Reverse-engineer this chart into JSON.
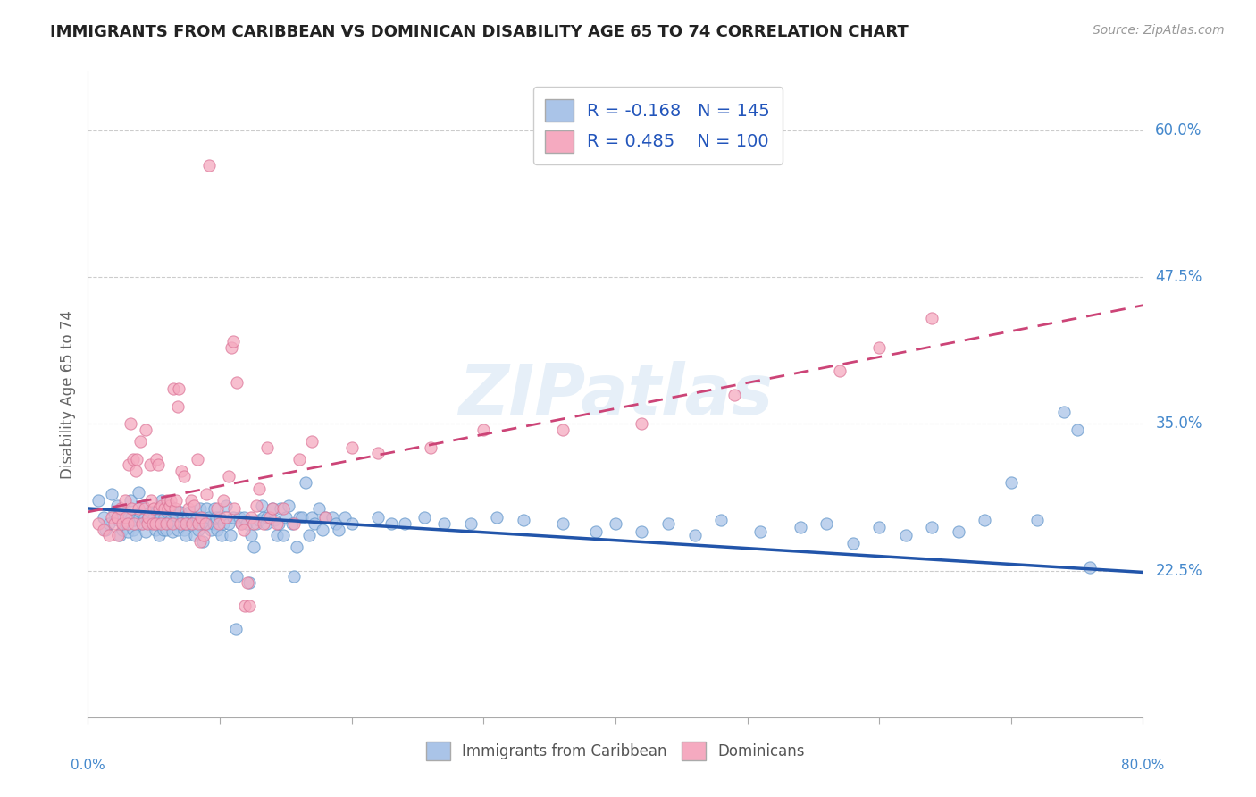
{
  "title": "IMMIGRANTS FROM CARIBBEAN VS DOMINICAN DISABILITY AGE 65 TO 74 CORRELATION CHART",
  "source": "Source: ZipAtlas.com",
  "ylabel": "Disability Age 65 to 74",
  "ytick_labels": [
    "22.5%",
    "35.0%",
    "47.5%",
    "60.0%"
  ],
  "ytick_values": [
    0.225,
    0.35,
    0.475,
    0.6
  ],
  "xmin": 0.0,
  "xmax": 0.8,
  "ymin": 0.1,
  "ymax": 0.65,
  "series": [
    {
      "name": "Immigrants from Caribbean",
      "color": "#aac4e8",
      "edge_color": "#6699cc",
      "line_color": "#2255aa",
      "R": -0.168,
      "N": 145,
      "slope": -0.068,
      "intercept": 0.278,
      "line_style": "solid"
    },
    {
      "name": "Dominicans",
      "color": "#f5aac0",
      "edge_color": "#dd7799",
      "line_color": "#cc4477",
      "R": 0.485,
      "N": 100,
      "slope": 0.22,
      "intercept": 0.275,
      "line_style": "dashed"
    }
  ],
  "watermark": "ZIPatlas",
  "caribbean_points": [
    [
      0.008,
      0.285
    ],
    [
      0.012,
      0.27
    ],
    [
      0.013,
      0.26
    ],
    [
      0.016,
      0.265
    ],
    [
      0.018,
      0.29
    ],
    [
      0.02,
      0.275
    ],
    [
      0.022,
      0.28
    ],
    [
      0.023,
      0.268
    ],
    [
      0.024,
      0.255
    ],
    [
      0.025,
      0.27
    ],
    [
      0.026,
      0.26
    ],
    [
      0.028,
      0.275
    ],
    [
      0.029,
      0.265
    ],
    [
      0.03,
      0.258
    ],
    [
      0.031,
      0.27
    ],
    [
      0.032,
      0.285
    ],
    [
      0.033,
      0.27
    ],
    [
      0.034,
      0.26
    ],
    [
      0.035,
      0.268
    ],
    [
      0.036,
      0.255
    ],
    [
      0.038,
      0.292
    ],
    [
      0.039,
      0.27
    ],
    [
      0.04,
      0.275
    ],
    [
      0.041,
      0.265
    ],
    [
      0.042,
      0.28
    ],
    [
      0.043,
      0.27
    ],
    [
      0.044,
      0.258
    ],
    [
      0.045,
      0.268
    ],
    [
      0.046,
      0.27
    ],
    [
      0.047,
      0.275
    ],
    [
      0.048,
      0.265
    ],
    [
      0.05,
      0.27
    ],
    [
      0.051,
      0.26
    ],
    [
      0.052,
      0.275
    ],
    [
      0.053,
      0.265
    ],
    [
      0.054,
      0.255
    ],
    [
      0.055,
      0.27
    ],
    [
      0.056,
      0.285
    ],
    [
      0.057,
      0.26
    ],
    [
      0.058,
      0.27
    ],
    [
      0.059,
      0.26
    ],
    [
      0.06,
      0.275
    ],
    [
      0.061,
      0.265
    ],
    [
      0.062,
      0.28
    ],
    [
      0.063,
      0.268
    ],
    [
      0.064,
      0.258
    ],
    [
      0.065,
      0.275
    ],
    [
      0.066,
      0.265
    ],
    [
      0.067,
      0.272
    ],
    [
      0.068,
      0.26
    ],
    [
      0.07,
      0.275
    ],
    [
      0.071,
      0.265
    ],
    [
      0.072,
      0.27
    ],
    [
      0.073,
      0.26
    ],
    [
      0.074,
      0.255
    ],
    [
      0.075,
      0.268
    ],
    [
      0.076,
      0.27
    ],
    [
      0.077,
      0.275
    ],
    [
      0.078,
      0.265
    ],
    [
      0.08,
      0.27
    ],
    [
      0.081,
      0.255
    ],
    [
      0.082,
      0.268
    ],
    [
      0.083,
      0.27
    ],
    [
      0.084,
      0.26
    ],
    [
      0.085,
      0.278
    ],
    [
      0.086,
      0.265
    ],
    [
      0.087,
      0.25
    ],
    [
      0.088,
      0.27
    ],
    [
      0.089,
      0.265
    ],
    [
      0.09,
      0.278
    ],
    [
      0.091,
      0.265
    ],
    [
      0.092,
      0.27
    ],
    [
      0.093,
      0.26
    ],
    [
      0.095,
      0.265
    ],
    [
      0.096,
      0.278
    ],
    [
      0.097,
      0.27
    ],
    [
      0.098,
      0.26
    ],
    [
      0.1,
      0.27
    ],
    [
      0.101,
      0.255
    ],
    [
      0.103,
      0.265
    ],
    [
      0.105,
      0.28
    ],
    [
      0.107,
      0.265
    ],
    [
      0.108,
      0.255
    ],
    [
      0.11,
      0.27
    ],
    [
      0.112,
      0.175
    ],
    [
      0.113,
      0.22
    ],
    [
      0.115,
      0.27
    ],
    [
      0.116,
      0.265
    ],
    [
      0.118,
      0.27
    ],
    [
      0.12,
      0.265
    ],
    [
      0.122,
      0.215
    ],
    [
      0.124,
      0.255
    ],
    [
      0.126,
      0.245
    ],
    [
      0.128,
      0.265
    ],
    [
      0.13,
      0.268
    ],
    [
      0.132,
      0.28
    ],
    [
      0.133,
      0.27
    ],
    [
      0.135,
      0.265
    ],
    [
      0.136,
      0.27
    ],
    [
      0.14,
      0.278
    ],
    [
      0.141,
      0.268
    ],
    [
      0.143,
      0.255
    ],
    [
      0.145,
      0.265
    ],
    [
      0.146,
      0.278
    ],
    [
      0.148,
      0.255
    ],
    [
      0.15,
      0.27
    ],
    [
      0.152,
      0.28
    ],
    [
      0.155,
      0.265
    ],
    [
      0.156,
      0.22
    ],
    [
      0.158,
      0.245
    ],
    [
      0.16,
      0.27
    ],
    [
      0.162,
      0.27
    ],
    [
      0.165,
      0.3
    ],
    [
      0.168,
      0.255
    ],
    [
      0.17,
      0.27
    ],
    [
      0.172,
      0.265
    ],
    [
      0.175,
      0.278
    ],
    [
      0.178,
      0.26
    ],
    [
      0.18,
      0.27
    ],
    [
      0.185,
      0.27
    ],
    [
      0.188,
      0.265
    ],
    [
      0.19,
      0.26
    ],
    [
      0.195,
      0.27
    ],
    [
      0.2,
      0.265
    ],
    [
      0.22,
      0.27
    ],
    [
      0.23,
      0.265
    ],
    [
      0.24,
      0.265
    ],
    [
      0.255,
      0.27
    ],
    [
      0.27,
      0.265
    ],
    [
      0.29,
      0.265
    ],
    [
      0.31,
      0.27
    ],
    [
      0.33,
      0.268
    ],
    [
      0.36,
      0.265
    ],
    [
      0.385,
      0.258
    ],
    [
      0.4,
      0.265
    ],
    [
      0.42,
      0.258
    ],
    [
      0.44,
      0.265
    ],
    [
      0.46,
      0.255
    ],
    [
      0.48,
      0.268
    ],
    [
      0.51,
      0.258
    ],
    [
      0.54,
      0.262
    ],
    [
      0.56,
      0.265
    ],
    [
      0.58,
      0.248
    ],
    [
      0.6,
      0.262
    ],
    [
      0.62,
      0.255
    ],
    [
      0.64,
      0.262
    ],
    [
      0.66,
      0.258
    ],
    [
      0.68,
      0.268
    ],
    [
      0.7,
      0.3
    ],
    [
      0.72,
      0.268
    ],
    [
      0.74,
      0.36
    ],
    [
      0.75,
      0.345
    ],
    [
      0.76,
      0.228
    ]
  ],
  "dominican_points": [
    [
      0.008,
      0.265
    ],
    [
      0.012,
      0.26
    ],
    [
      0.016,
      0.255
    ],
    [
      0.018,
      0.27
    ],
    [
      0.02,
      0.265
    ],
    [
      0.022,
      0.27
    ],
    [
      0.023,
      0.255
    ],
    [
      0.025,
      0.278
    ],
    [
      0.026,
      0.265
    ],
    [
      0.028,
      0.285
    ],
    [
      0.029,
      0.27
    ],
    [
      0.03,
      0.265
    ],
    [
      0.031,
      0.315
    ],
    [
      0.032,
      0.35
    ],
    [
      0.033,
      0.278
    ],
    [
      0.034,
      0.32
    ],
    [
      0.035,
      0.265
    ],
    [
      0.036,
      0.31
    ],
    [
      0.037,
      0.32
    ],
    [
      0.038,
      0.278
    ],
    [
      0.04,
      0.335
    ],
    [
      0.041,
      0.265
    ],
    [
      0.043,
      0.278
    ],
    [
      0.044,
      0.345
    ],
    [
      0.045,
      0.265
    ],
    [
      0.046,
      0.27
    ],
    [
      0.047,
      0.315
    ],
    [
      0.048,
      0.285
    ],
    [
      0.049,
      0.265
    ],
    [
      0.05,
      0.278
    ],
    [
      0.051,
      0.265
    ],
    [
      0.052,
      0.32
    ],
    [
      0.053,
      0.315
    ],
    [
      0.054,
      0.278
    ],
    [
      0.055,
      0.265
    ],
    [
      0.056,
      0.28
    ],
    [
      0.058,
      0.278
    ],
    [
      0.059,
      0.265
    ],
    [
      0.06,
      0.285
    ],
    [
      0.061,
      0.278
    ],
    [
      0.062,
      0.28
    ],
    [
      0.063,
      0.285
    ],
    [
      0.064,
      0.265
    ],
    [
      0.065,
      0.38
    ],
    [
      0.066,
      0.278
    ],
    [
      0.067,
      0.285
    ],
    [
      0.068,
      0.365
    ],
    [
      0.069,
      0.38
    ],
    [
      0.07,
      0.265
    ],
    [
      0.071,
      0.31
    ],
    [
      0.073,
      0.305
    ],
    [
      0.074,
      0.265
    ],
    [
      0.076,
      0.278
    ],
    [
      0.078,
      0.285
    ],
    [
      0.079,
      0.265
    ],
    [
      0.08,
      0.28
    ],
    [
      0.083,
      0.32
    ],
    [
      0.084,
      0.265
    ],
    [
      0.085,
      0.25
    ],
    [
      0.086,
      0.27
    ],
    [
      0.088,
      0.255
    ],
    [
      0.089,
      0.265
    ],
    [
      0.09,
      0.29
    ],
    [
      0.092,
      0.57
    ],
    [
      0.098,
      0.278
    ],
    [
      0.099,
      0.265
    ],
    [
      0.103,
      0.285
    ],
    [
      0.105,
      0.27
    ],
    [
      0.107,
      0.305
    ],
    [
      0.109,
      0.415
    ],
    [
      0.11,
      0.42
    ],
    [
      0.111,
      0.278
    ],
    [
      0.113,
      0.385
    ],
    [
      0.116,
      0.265
    ],
    [
      0.118,
      0.26
    ],
    [
      0.119,
      0.195
    ],
    [
      0.121,
      0.215
    ],
    [
      0.122,
      0.195
    ],
    [
      0.124,
      0.27
    ],
    [
      0.126,
      0.265
    ],
    [
      0.128,
      0.28
    ],
    [
      0.13,
      0.295
    ],
    [
      0.133,
      0.265
    ],
    [
      0.136,
      0.33
    ],
    [
      0.138,
      0.27
    ],
    [
      0.14,
      0.278
    ],
    [
      0.143,
      0.265
    ],
    [
      0.148,
      0.278
    ],
    [
      0.156,
      0.265
    ],
    [
      0.16,
      0.32
    ],
    [
      0.17,
      0.335
    ],
    [
      0.18,
      0.27
    ],
    [
      0.2,
      0.33
    ],
    [
      0.22,
      0.325
    ],
    [
      0.26,
      0.33
    ],
    [
      0.3,
      0.345
    ],
    [
      0.36,
      0.345
    ],
    [
      0.42,
      0.35
    ],
    [
      0.49,
      0.375
    ],
    [
      0.57,
      0.395
    ],
    [
      0.6,
      0.415
    ],
    [
      0.64,
      0.44
    ]
  ]
}
